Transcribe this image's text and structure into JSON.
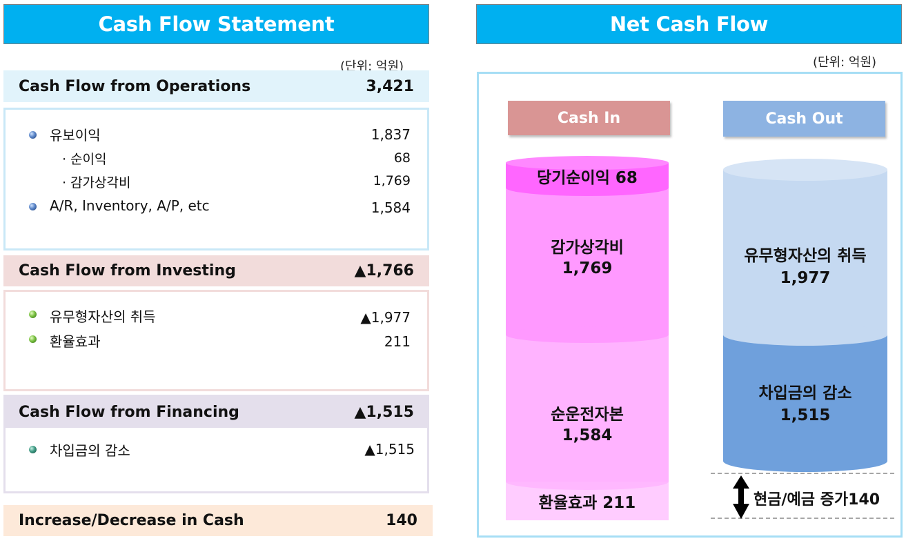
{
  "left": {
    "title": "Cash Flow Statement",
    "unit": "(단위: 억원)",
    "operations": {
      "label": "Cash Flow from Operations",
      "value": "3,421",
      "items": [
        {
          "label": "유보이익",
          "value": "1,837"
        },
        {
          "label": "· 순이익",
          "value": "68"
        },
        {
          "label": "· 감가상각비",
          "value": "1,769"
        },
        {
          "label": "A/R, Inventory, A/P, etc",
          "value": "1,584"
        }
      ]
    },
    "investing": {
      "label": "Cash Flow from Investing",
      "value": "▲1,766",
      "items": [
        {
          "label": "유무형자산의 취득",
          "value": "▲1,977"
        },
        {
          "label": "환율효과",
          "value": "211"
        }
      ]
    },
    "financing": {
      "label": "Cash Flow from Financing",
      "value": "▲1,515",
      "items": [
        {
          "label": "차입금의 감소",
          "value": "▲1,515"
        }
      ]
    },
    "total": {
      "label": "Increase/Decrease in Cash",
      "value": "140"
    }
  },
  "right": {
    "title": "Net Cash Flow",
    "unit": "(단위: 억원)",
    "cash_in": {
      "label": "Cash In",
      "segments": [
        {
          "name": "당기순이익",
          "value": "68",
          "text": "당기순이익 68"
        },
        {
          "name": "감가상각비",
          "value": "1,769"
        },
        {
          "name": "순운전자본",
          "value": "1,584"
        },
        {
          "name": "환율효과",
          "value": "211",
          "text": "환율효과 211"
        }
      ]
    },
    "cash_out": {
      "label": "Cash Out",
      "segments": [
        {
          "name": "유무형자산의 취득",
          "value": "1,977"
        },
        {
          "name": "차입금의 감소",
          "value": "1,515"
        }
      ],
      "increase_text": "현금/예금 증가140"
    }
  },
  "colors": {
    "header": "#00b0f0",
    "operations_bg": "#e1f3fb",
    "investing_bg": "#f2dcdb",
    "financing_bg": "#e4dfec",
    "total_bg": "#fde9d9",
    "cash_in_tag": "#d99594",
    "cash_out_tag": "#8db3e2",
    "magenta_dark": "#ff66ff",
    "magenta_mid": "#ff99ff",
    "magenta_light": "#ffccff",
    "blue_light": "#c5d9f1",
    "blue_dark": "#6fa0dc"
  }
}
